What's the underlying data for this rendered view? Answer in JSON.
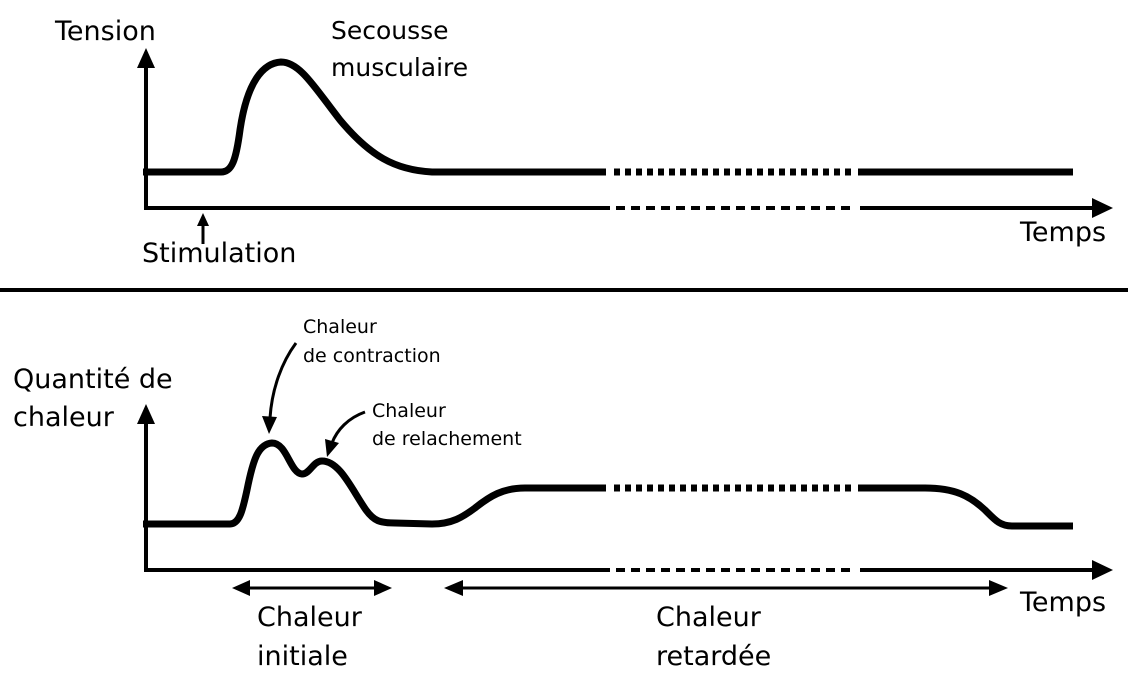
{
  "top_panel": {
    "y_axis_label": "Tension",
    "x_axis_label": "Temps",
    "stimulus_label": "Stimulation",
    "peak_label_line1": "Secousse",
    "peak_label_line2": "musculaire"
  },
  "bottom_panel": {
    "y_axis_label_line1": "Quantité de",
    "y_axis_label_line2": "chaleur",
    "x_axis_label": "Temps",
    "peak1_label_line1": "Chaleur",
    "peak1_label_line2": "de contraction",
    "peak2_label_line1": "Chaleur",
    "peak2_label_line2": "de relachement",
    "range1_label_line1": "Chaleur",
    "range1_label_line2": "initiale",
    "range2_label_line1": "Chaleur",
    "range2_label_line2": "retardée"
  }
}
